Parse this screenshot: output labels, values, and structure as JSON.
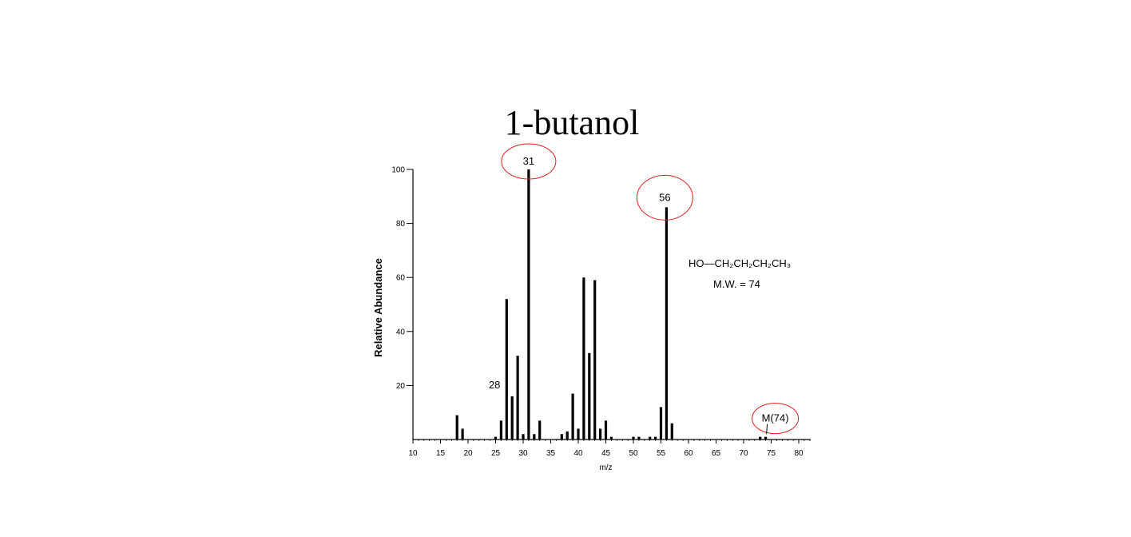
{
  "chart_data": {
    "type": "bar",
    "title": "1-butanol",
    "ylabel": "Relative Abundance",
    "xlabel": "m/z",
    "xlim": [
      10,
      82
    ],
    "ylim": [
      0,
      100
    ],
    "x_ticks": [
      "10",
      "15",
      "20",
      "25",
      "30",
      "35",
      "40",
      "45",
      "50",
      "55",
      "60",
      "65",
      "70",
      "75",
      "80"
    ],
    "y_ticks": [
      "20",
      "40",
      "60",
      "80",
      "100"
    ],
    "grid": false,
    "peaks": [
      {
        "x": 18,
        "y": 9
      },
      {
        "x": 19,
        "y": 4
      },
      {
        "x": 25,
        "y": 1
      },
      {
        "x": 26,
        "y": 7
      },
      {
        "x": 27,
        "y": 52
      },
      {
        "x": 28,
        "y": 16
      },
      {
        "x": 29,
        "y": 31
      },
      {
        "x": 30,
        "y": 2
      },
      {
        "x": 31,
        "y": 100
      },
      {
        "x": 32,
        "y": 2
      },
      {
        "x": 33,
        "y": 7
      },
      {
        "x": 37,
        "y": 2
      },
      {
        "x": 38,
        "y": 3
      },
      {
        "x": 39,
        "y": 17
      },
      {
        "x": 40,
        "y": 4
      },
      {
        "x": 41,
        "y": 60
      },
      {
        "x": 42,
        "y": 32
      },
      {
        "x": 43,
        "y": 59
      },
      {
        "x": 44,
        "y": 4
      },
      {
        "x": 45,
        "y": 7
      },
      {
        "x": 46,
        "y": 1
      },
      {
        "x": 50,
        "y": 1
      },
      {
        "x": 51,
        "y": 1
      },
      {
        "x": 53,
        "y": 1
      },
      {
        "x": 54,
        "y": 1
      },
      {
        "x": 55,
        "y": 12
      },
      {
        "x": 56,
        "y": 86
      },
      {
        "x": 57,
        "y": 6
      },
      {
        "x": 73,
        "y": 1
      },
      {
        "x": 74,
        "y": 1
      }
    ],
    "annotations": [
      {
        "text": "31",
        "x": 31,
        "y": 100,
        "circled": true
      },
      {
        "text": "56",
        "x": 56,
        "y": 86,
        "circled": true
      },
      {
        "text": "28",
        "x": 28,
        "y": 16,
        "circled": false
      },
      {
        "text": "M(74)",
        "x": 74,
        "y": 1,
        "circled": true
      }
    ],
    "formula": "HO—CH₂CH₂CH₂CH₃",
    "molecular_weight": "M.W. = 74",
    "highlight_color": "#e02020"
  }
}
